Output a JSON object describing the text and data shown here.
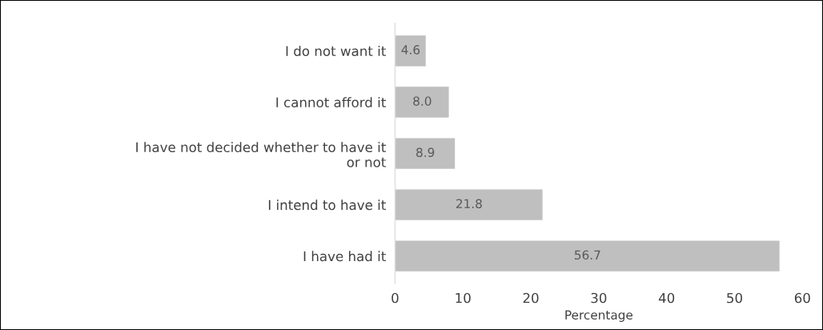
{
  "chart_data": {
    "type": "bar",
    "orientation": "horizontal",
    "xlabel": "Percentage",
    "categories": [
      "I do not want it",
      "I cannot afford it",
      "I have not decided whether to have it\nor not",
      "I intend to have it",
      "I have had it"
    ],
    "values": [
      4.6,
      8.0,
      8.9,
      21.8,
      56.7
    ],
    "value_labels": [
      "4.6",
      "8.0",
      "8.9",
      "21.8",
      "56.7"
    ],
    "color": "#bfbfbf",
    "xlim": [
      0,
      60
    ],
    "xticks": [
      0,
      10,
      20,
      30,
      40,
      50,
      60
    ],
    "grid": false,
    "legend": false
  }
}
